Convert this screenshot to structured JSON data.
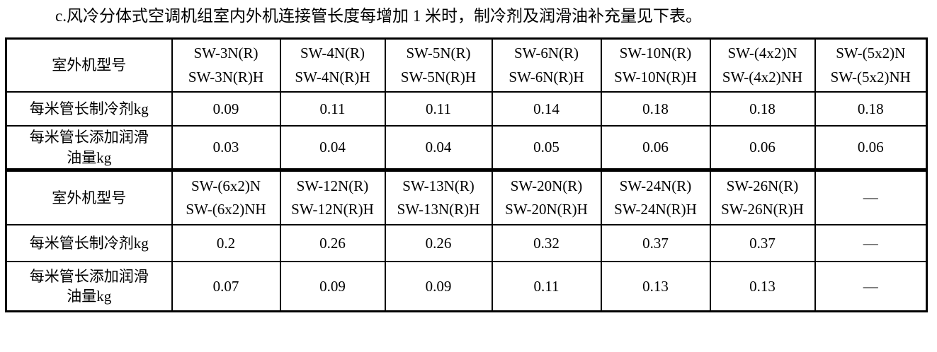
{
  "title": "c.风冷分体式空调机组室内外机连接管长度每增加 1 米时，制冷剂及润滑油补充量见下表。",
  "table": {
    "row_header_label": "室外机型号",
    "refrigerant_row_label": "每米管长制冷剂kg",
    "oil_row_label": "每米管长添加润滑\n油量kg",
    "empty_cell": "—",
    "border_color": "#000000",
    "sections": [
      {
        "models": [
          "SW-3N(R)\nSW-3N(R)H",
          "SW-4N(R)\nSW-4N(R)H",
          "SW-5N(R)\nSW-5N(R)H",
          "SW-6N(R)\nSW-6N(R)H",
          "SW-10N(R)\nSW-10N(R)H",
          "SW-(4x2)N\nSW-(4x2)NH",
          "SW-(5x2)N\nSW-(5x2)NH"
        ],
        "rows": [
          {
            "label": "每米管长制冷剂kg",
            "values": [
              "0.09",
              "0.11",
              "0.11",
              "0.14",
              "0.18",
              "0.18",
              "0.18"
            ]
          },
          {
            "label": "每米管长添加润滑\n油量kg",
            "values": [
              "0.03",
              "0.04",
              "0.04",
              "0.05",
              "0.06",
              "0.06",
              "0.06"
            ]
          }
        ]
      },
      {
        "models": [
          "SW-(6x2)N\nSW-(6x2)NH",
          "SW-12N(R)\nSW-12N(R)H",
          "SW-13N(R)\nSW-13N(R)H",
          "SW-20N(R)\nSW-20N(R)H",
          "SW-24N(R)\nSW-24N(R)H",
          "SW-26N(R)\nSW-26N(R)H",
          "—"
        ],
        "rows": [
          {
            "label": "每米管长制冷剂kg",
            "values": [
              "0.2",
              "0.26",
              "0.26",
              "0.32",
              "0.37",
              "0.37",
              "—"
            ]
          },
          {
            "label": "每米管长添加润滑\n油量kg",
            "values": [
              "0.07",
              "0.09",
              "0.09",
              "0.11",
              "0.13",
              "0.13",
              "—"
            ]
          }
        ]
      }
    ]
  }
}
